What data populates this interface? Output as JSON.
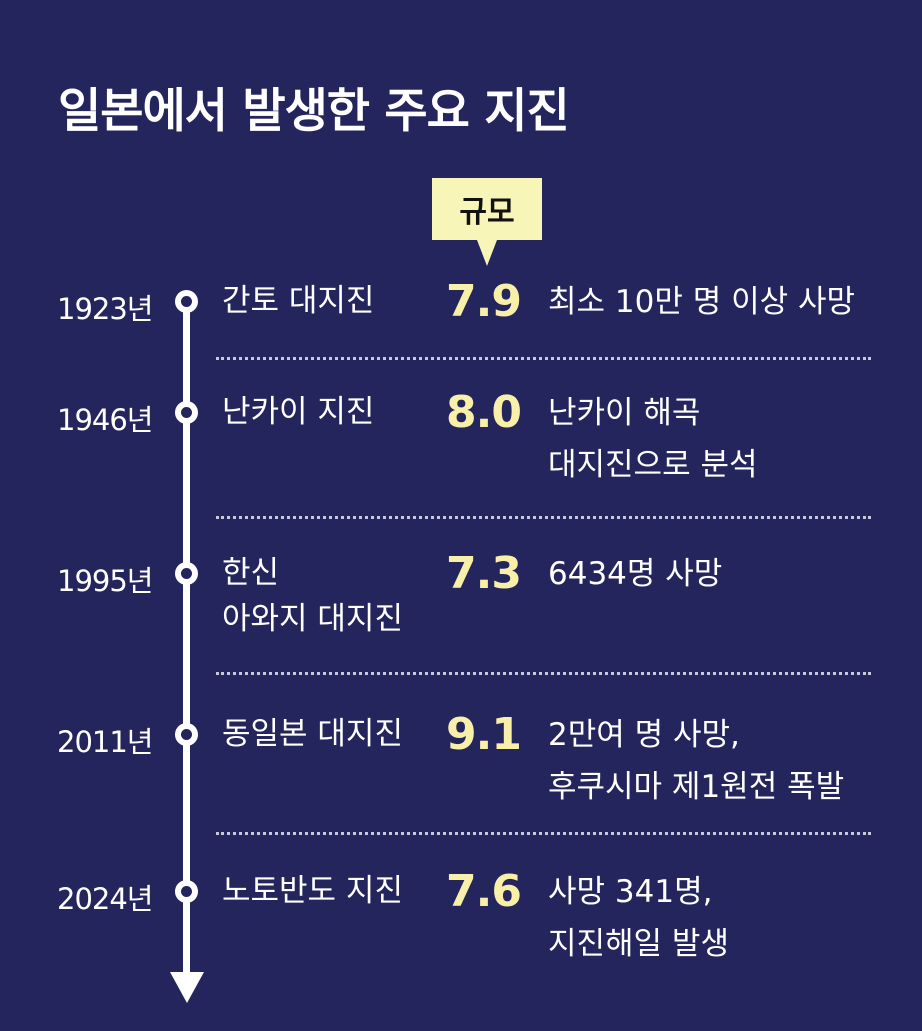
{
  "title": "일본에서 발생한 주요 지진",
  "magnitude_label": "규모",
  "events": [
    {
      "year": "1923년",
      "name_lines": [
        "간토 대지진"
      ],
      "magnitude": "7.9",
      "desc_lines": [
        "최소 10만 명 이상 사망"
      ]
    },
    {
      "year": "1946년",
      "name_lines": [
        "난카이 지진"
      ],
      "magnitude": "8.0",
      "desc_lines": [
        "난카이 해곡",
        "대지진으로 분석"
      ]
    },
    {
      "year": "1995년",
      "name_lines": [
        "한신",
        "아와지 대지진"
      ],
      "magnitude": "7.3",
      "desc_lines": [
        "6434명 사망"
      ]
    },
    {
      "year": "2011년",
      "name_lines": [
        "동일본 대지진"
      ],
      "magnitude": "9.1",
      "desc_lines": [
        "2만여 명 사망,",
        "후쿠시마 제1원전 폭발"
      ]
    },
    {
      "year": "2024년",
      "name_lines": [
        "노토반도 지진"
      ],
      "magnitude": "7.6",
      "desc_lines": [
        "사망 341명,",
        "지진해일 발생"
      ]
    }
  ],
  "colors": {
    "background": "#25255d",
    "magnitude_text": "#f8f0a8",
    "badge": "#f8f5b8",
    "text": "#ffffff"
  }
}
